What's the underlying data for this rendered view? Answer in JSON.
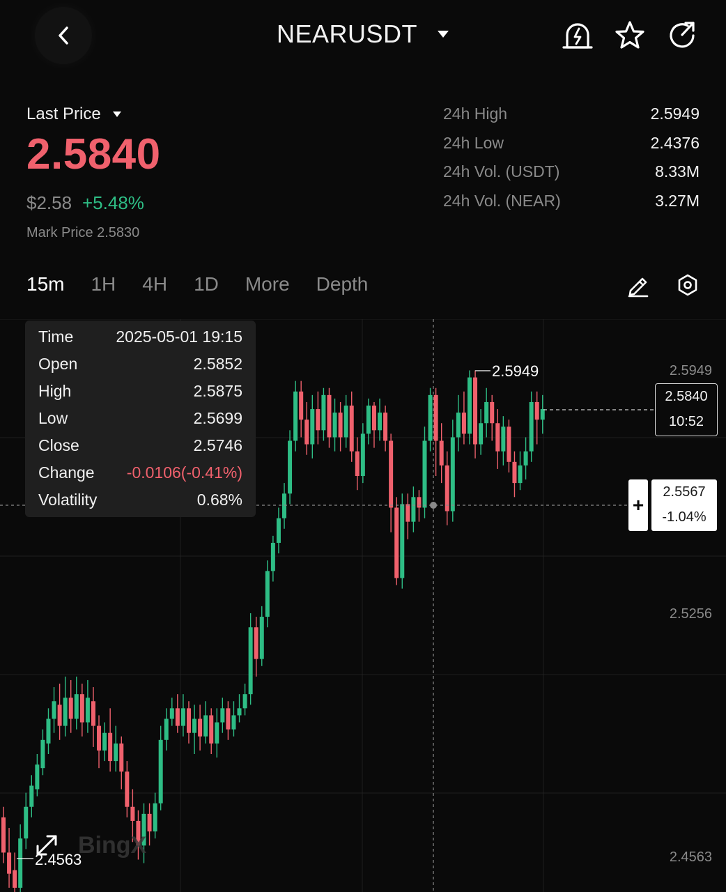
{
  "header": {
    "pair": "NEARUSDT",
    "icons": [
      "back-icon",
      "caret-down-icon",
      "alert-bell-icon",
      "star-icon",
      "share-icon"
    ]
  },
  "price": {
    "label": "Last Price",
    "last": "2.5840",
    "usd": "$2.58",
    "change_pct": "+5.48%",
    "mark": "Mark Price 2.5830"
  },
  "stats": [
    {
      "label": "24h High",
      "value": "2.5949"
    },
    {
      "label": "24h Low",
      "value": "2.4376"
    },
    {
      "label": "24h Vol. (USDT)",
      "value": "8.33M"
    },
    {
      "label": "24h Vol. (NEAR)",
      "value": "3.27M"
    }
  ],
  "tabs": [
    "15m",
    "1H",
    "4H",
    "1D",
    "More",
    "Depth"
  ],
  "tooltip": {
    "time_label": "Time",
    "time": "2025-05-01 19:15",
    "open_label": "Open",
    "open": "2.5852",
    "high_label": "High",
    "high": "2.5875",
    "low_label": "Low",
    "low": "2.5699",
    "close_label": "Close",
    "close": "2.5746",
    "change_label": "Change",
    "change": "-0.0106(-0.41%)",
    "volatility_label": "Volatility",
    "volatility": "0.68%"
  },
  "current_price_box": {
    "price": "2.5840",
    "countdown": "10:52"
  },
  "crosshair_box": {
    "price": "2.5567",
    "pct": "-1.04%"
  },
  "axis_labels": [
    "2.5949",
    "2.5256",
    "2.4563"
  ],
  "high_marker": "2.5949",
  "low_marker": "2.4563",
  "watermark": "BingX",
  "colors": {
    "up": "#2ebd85",
    "down": "#f0616d",
    "bg": "#0a0a0a",
    "muted": "#8a8a8a"
  },
  "chart_data": {
    "type": "candlestick",
    "ylim": [
      2.435,
      2.62
    ],
    "candles": [
      [
        2.468,
        2.458,
        2.471,
        2.455
      ],
      [
        2.458,
        2.452,
        2.465,
        2.448
      ],
      [
        2.453,
        2.448,
        2.458,
        2.446
      ],
      [
        2.448,
        2.462,
        2.466,
        2.446
      ],
      [
        2.462,
        2.471,
        2.475,
        2.459
      ],
      [
        2.471,
        2.477,
        2.48,
        2.468
      ],
      [
        2.476,
        2.483,
        2.486,
        2.474
      ],
      [
        2.482,
        2.49,
        2.493,
        2.48
      ],
      [
        2.489,
        2.496,
        2.499,
        2.486
      ],
      [
        2.496,
        2.501,
        2.505,
        2.492
      ],
      [
        2.5,
        2.494,
        2.506,
        2.49
      ],
      [
        2.494,
        2.502,
        2.508,
        2.491
      ],
      [
        2.502,
        2.496,
        2.507,
        2.492
      ],
      [
        2.496,
        2.503,
        2.508,
        2.493
      ],
      [
        2.503,
        2.495,
        2.506,
        2.491
      ],
      [
        2.495,
        2.502,
        2.507,
        2.492
      ],
      [
        2.501,
        2.494,
        2.505,
        2.488
      ],
      [
        2.494,
        2.487,
        2.497,
        2.482
      ],
      [
        2.487,
        2.492,
        2.495,
        2.484
      ],
      [
        2.492,
        2.484,
        2.499,
        2.481
      ],
      [
        2.484,
        2.489,
        2.494,
        2.481
      ],
      [
        2.489,
        2.481,
        2.491,
        2.476
      ],
      [
        2.481,
        2.471,
        2.484,
        2.468
      ],
      [
        2.471,
        2.467,
        2.476,
        2.461
      ],
      [
        2.467,
        2.46,
        2.47,
        2.456
      ],
      [
        2.46,
        2.469,
        2.472,
        2.455
      ],
      [
        2.469,
        2.464,
        2.472,
        2.46
      ],
      [
        2.464,
        2.472,
        2.475,
        2.462
      ],
      [
        2.472,
        2.49,
        2.494,
        2.47
      ],
      [
        2.49,
        2.496,
        2.499,
        2.487
      ],
      [
        2.496,
        2.499,
        2.502,
        2.494
      ],
      [
        2.499,
        2.494,
        2.503,
        2.492
      ],
      [
        2.494,
        2.499,
        2.503,
        2.491
      ],
      [
        2.499,
        2.492,
        2.501,
        2.489
      ],
      [
        2.492,
        2.496,
        2.5,
        2.486
      ],
      [
        2.496,
        2.491,
        2.5,
        2.487
      ],
      [
        2.491,
        2.497,
        2.501,
        2.489
      ],
      [
        2.497,
        2.489,
        2.499,
        2.486
      ],
      [
        2.489,
        2.495,
        2.499,
        2.485
      ],
      [
        2.495,
        2.499,
        2.502,
        2.492
      ],
      [
        2.499,
        2.493,
        2.501,
        2.49
      ],
      [
        2.493,
        2.497,
        2.501,
        2.491
      ],
      [
        2.497,
        2.499,
        2.503,
        2.495
      ],
      [
        2.499,
        2.503,
        2.506,
        2.497
      ],
      [
        2.503,
        2.522,
        2.526,
        2.5
      ],
      [
        2.522,
        2.513,
        2.525,
        2.508
      ],
      [
        2.513,
        2.525,
        2.528,
        2.511
      ],
      [
        2.525,
        2.538,
        2.541,
        2.522
      ],
      [
        2.538,
        2.546,
        2.548,
        2.535
      ],
      [
        2.546,
        2.553,
        2.556,
        2.543
      ],
      [
        2.553,
        2.56,
        2.563,
        2.55
      ],
      [
        2.56,
        2.575,
        2.578,
        2.557
      ],
      [
        2.575,
        2.589,
        2.592,
        2.572
      ],
      [
        2.589,
        2.581,
        2.592,
        2.576
      ],
      [
        2.581,
        2.574,
        2.586,
        2.571
      ],
      [
        2.574,
        2.584,
        2.588,
        2.57
      ],
      [
        2.584,
        2.578,
        2.589,
        2.574
      ],
      [
        2.578,
        2.588,
        2.59,
        2.575
      ],
      [
        2.588,
        2.576,
        2.59,
        2.573
      ],
      [
        2.576,
        2.583,
        2.587,
        2.572
      ],
      [
        2.583,
        2.576,
        2.586,
        2.572
      ],
      [
        2.576,
        2.585,
        2.588,
        2.573
      ],
      [
        2.585,
        2.572,
        2.589,
        2.569
      ],
      [
        2.572,
        2.565,
        2.576,
        2.561
      ],
      [
        2.565,
        2.577,
        2.58,
        2.563
      ],
      [
        2.577,
        2.585,
        2.587,
        2.574
      ],
      [
        2.585,
        2.578,
        2.586,
        2.573
      ],
      [
        2.578,
        2.583,
        2.587,
        2.575
      ],
      [
        2.583,
        2.575,
        2.585,
        2.572
      ],
      [
        2.575,
        2.556,
        2.577,
        2.549
      ],
      [
        2.556,
        2.536,
        2.559,
        2.534
      ],
      [
        2.536,
        2.557,
        2.56,
        2.533
      ],
      [
        2.557,
        2.552,
        2.56,
        2.547
      ],
      [
        2.552,
        2.559,
        2.562,
        2.549
      ],
      [
        2.559,
        2.556,
        2.561,
        2.552
      ],
      [
        2.556,
        2.575,
        2.579,
        2.553
      ],
      [
        2.575,
        2.588,
        2.59,
        2.572
      ],
      [
        2.588,
        2.575,
        2.59,
        2.565
      ],
      [
        2.575,
        2.568,
        2.58,
        2.563
      ],
      [
        2.568,
        2.555,
        2.572,
        2.551
      ],
      [
        2.555,
        2.576,
        2.581,
        2.552
      ],
      [
        2.576,
        2.583,
        2.588,
        2.572
      ],
      [
        2.583,
        2.577,
        2.589,
        2.574
      ],
      [
        2.577,
        2.593,
        2.595,
        2.574
      ],
      [
        2.593,
        2.574,
        2.595,
        2.57
      ],
      [
        2.574,
        2.58,
        2.584,
        2.571
      ],
      [
        2.58,
        2.586,
        2.59,
        2.576
      ],
      [
        2.586,
        2.58,
        2.588,
        2.575
      ],
      [
        2.58,
        2.572,
        2.584,
        2.567
      ],
      [
        2.572,
        2.579,
        2.582,
        2.568
      ],
      [
        2.579,
        2.569,
        2.581,
        2.566
      ],
      [
        2.569,
        2.563,
        2.572,
        2.559
      ],
      [
        2.563,
        2.568,
        2.572,
        2.561
      ],
      [
        2.568,
        2.572,
        2.576,
        2.564
      ],
      [
        2.572,
        2.586,
        2.589,
        2.569
      ],
      [
        2.586,
        2.581,
        2.589,
        2.574
      ],
      [
        2.581,
        2.584,
        2.588,
        2.577
      ]
    ]
  }
}
